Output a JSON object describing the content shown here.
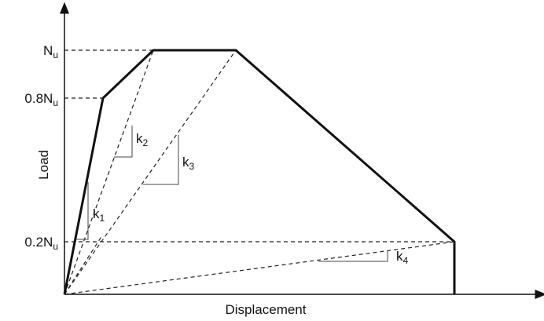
{
  "axes": {
    "y_label": "Load",
    "x_label": "Displacement"
  },
  "levels": [
    {
      "base": "N",
      "sub": "u"
    },
    {
      "base": "0.8N",
      "sub": "u"
    },
    {
      "base": "0.2N",
      "sub": "u"
    }
  ],
  "slopes": [
    {
      "base": "k",
      "sub": "1"
    },
    {
      "base": "k",
      "sub": "2"
    },
    {
      "base": "k",
      "sub": "3"
    },
    {
      "base": "k",
      "sub": "4"
    }
  ]
}
